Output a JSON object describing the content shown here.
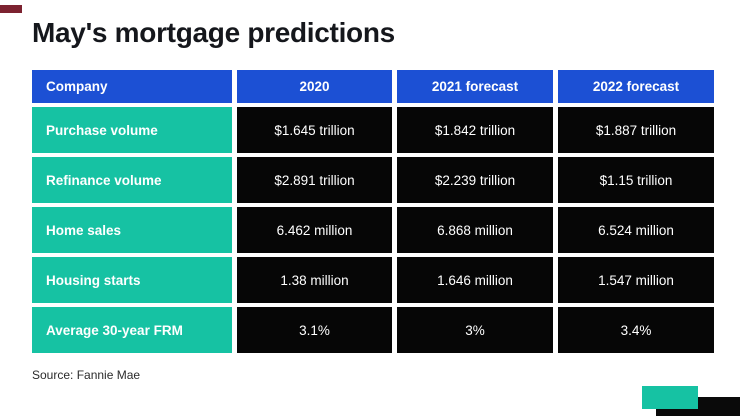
{
  "title": "May's mortgage predictions",
  "source": "Source: Fannie Mae",
  "chart_data": {
    "type": "table",
    "title": "May's mortgage predictions",
    "columns": [
      "Company",
      "2020",
      "2021 forecast",
      "2022 forecast"
    ],
    "rows": [
      {
        "label": "Purchase volume",
        "values": [
          "$1.645 trillion",
          "$1.842 trillion",
          "$1.887 trillion"
        ]
      },
      {
        "label": "Refinance volume",
        "values": [
          "$2.891 trillion",
          "$2.239 trillion",
          "$1.15 trillion"
        ]
      },
      {
        "label": "Home sales",
        "values": [
          "6.462 million",
          "6.868 million",
          "6.524 million"
        ]
      },
      {
        "label": "Housing starts",
        "values": [
          "1.38 million",
          "1.646 million",
          "1.547 million"
        ]
      },
      {
        "label": "Average 30-year FRM",
        "values": [
          "3.1%",
          "3%",
          "3.4%"
        ]
      }
    ],
    "source": "Fannie Mae",
    "legend": "none",
    "grid": "white gaps between solid cells"
  },
  "colors": {
    "header_blue": "#1c50d4",
    "row_label_teal": "#16c2a3",
    "value_cell_black": "#060606",
    "accent_maroon": "#7c2230",
    "accent_black": "#0a0a0a",
    "cell_text": "#ffffff",
    "title_text": "#15171c"
  }
}
